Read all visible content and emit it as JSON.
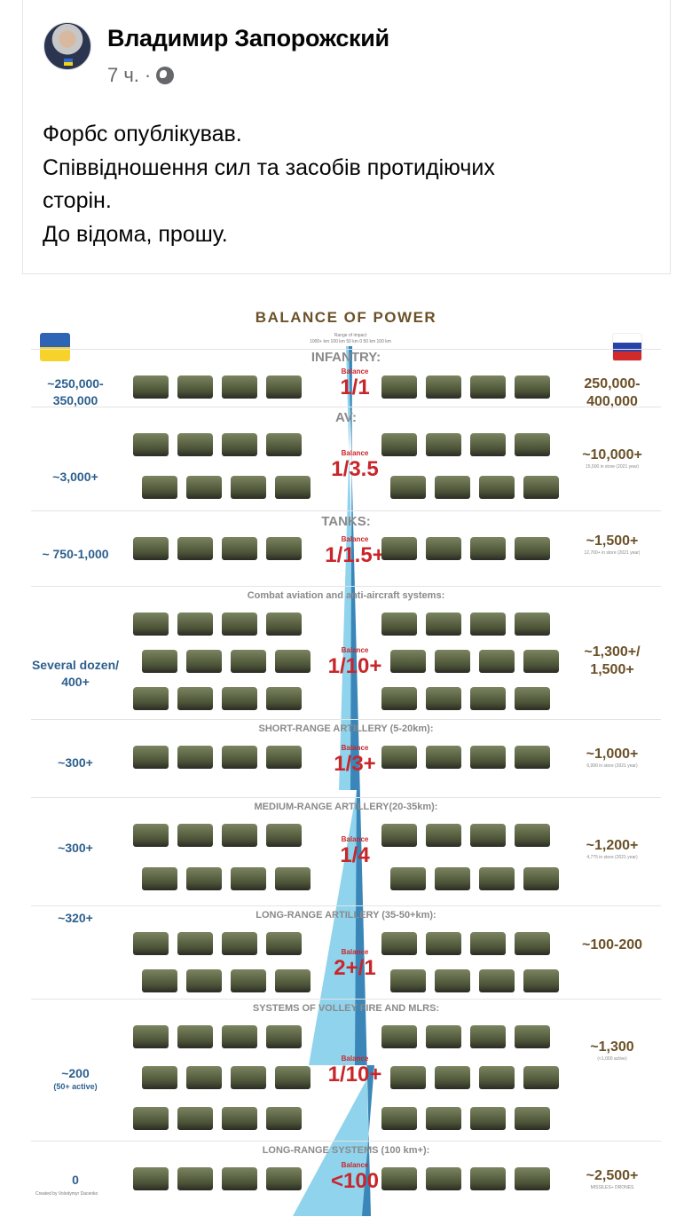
{
  "post": {
    "author": "Владимир Запорожский",
    "time": "7 ч.",
    "separator": "·",
    "privacy_icon": "globe-icon",
    "text_lines": [
      "Форбс опублікував.",
      "Співвідношення сил та засобів протидіючих",
      "сторін.",
      "До відома, прошу."
    ]
  },
  "infographic": {
    "title": "BALANCE OF POWER",
    "range_label": "Range of impact",
    "range_ticks": "1000+ km   100 km  50 km  0  50 km  100 km",
    "credit": "Created by Volodymyr Dacenko",
    "colors": {
      "ukraine": "#2d5f8e",
      "russia": "#6b5128",
      "balance": "#c8262a",
      "beam": "#8fd3ec"
    },
    "sections": [
      {
        "heading": "INFANTRY:",
        "left": "~250,000-350,000",
        "left_sub": "",
        "balance": "Balance",
        "ratio": "1/1",
        "right": "250,000-400,000",
        "right_sub": ""
      },
      {
        "heading": "AV:",
        "left": "~3,000+",
        "left_sub": "",
        "balance": "Balance",
        "ratio": "1/3.5",
        "right": "~10,000+",
        "right_sub": "15,500 in store (2021 year)"
      },
      {
        "heading": "TANKS:",
        "left": "~ 750-1,000",
        "left_sub": "",
        "balance": "Balance",
        "ratio": "1/1.5+",
        "right": "~1,500+",
        "right_sub": "12,700+ in store (2021 year)"
      },
      {
        "heading": "Combat aviation and anti-aircraft systems:",
        "left": "Several dozen/ 400+",
        "left_sub": "",
        "balance": "Balance",
        "ratio": "1/10+",
        "right": "~1,300+/ 1,500+",
        "right_sub": ""
      },
      {
        "heading": "SHORT-RANGE ARTILLERY (5-20km):",
        "left": "~300+",
        "left_sub": "",
        "balance": "Balance",
        "ratio": "1/3+",
        "right": "~1,000+",
        "right_sub": "6,990 in store (2021 year)"
      },
      {
        "heading": "MEDIUM-RANGE ARTILLERY(20-35km):",
        "left": "~300+",
        "left_sub": "",
        "balance": "Balance",
        "ratio": "1/4",
        "right": "~1,200+",
        "right_sub": "4,775 in store (2021 year)"
      },
      {
        "heading": "LONG-RANGE ARTILLERY (35-50+km):",
        "left": "~320+",
        "left_sub": "",
        "balance": "Balance",
        "ratio": "2+/1",
        "right": "~100-200",
        "right_sub": ""
      },
      {
        "heading": "SYSTEMS OF VOLLEY FIRE AND MLRS:",
        "left": "~200",
        "left_sub": "(50+ active)",
        "balance": "Balance",
        "ratio": "1/10+",
        "right": "~1,300",
        "right_sub": "(<1,000 active)"
      },
      {
        "heading": "LONG-RANGE SYSTEMS (100 km+):",
        "left": "0",
        "left_sub": "",
        "balance": "Balance",
        "ratio": "<100",
        "right": "~2,500+",
        "right_sub": "MISSILES+ DRONES"
      }
    ]
  }
}
